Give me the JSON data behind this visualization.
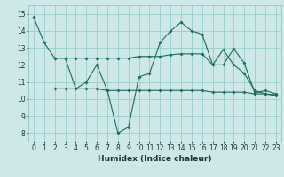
{
  "bg_color": "#cce8e8",
  "grid_color": "#99cccc",
  "line_color": "#1a6b5a",
  "xlabel": "Humidex (Indice chaleur)",
  "xlim": [
    -0.5,
    23.5
  ],
  "ylim": [
    7.5,
    15.5
  ],
  "yticks": [
    8,
    9,
    10,
    11,
    12,
    13,
    14,
    15
  ],
  "xticks": [
    0,
    1,
    2,
    3,
    4,
    5,
    6,
    7,
    8,
    9,
    10,
    11,
    12,
    13,
    14,
    15,
    16,
    17,
    18,
    19,
    20,
    21,
    22,
    23
  ],
  "line1_x": [
    0,
    1,
    2,
    3,
    4,
    5,
    6,
    7,
    8,
    9,
    10,
    11,
    12,
    13,
    14,
    15,
    16,
    17,
    18,
    19,
    20,
    21,
    22,
    23
  ],
  "line1_y": [
    14.8,
    13.3,
    12.4,
    12.4,
    10.6,
    11.0,
    12.0,
    10.5,
    8.0,
    8.35,
    11.3,
    11.5,
    13.3,
    14.0,
    14.5,
    14.0,
    13.8,
    12.0,
    12.9,
    12.0,
    11.5,
    10.5,
    10.3,
    10.25
  ],
  "line2_x": [
    2,
    3,
    4,
    5,
    6,
    7,
    8,
    9,
    10,
    11,
    12,
    13,
    14,
    15,
    16,
    17,
    18,
    19,
    20,
    21,
    22,
    23
  ],
  "line2_y": [
    10.6,
    10.6,
    10.6,
    10.6,
    10.6,
    10.5,
    10.5,
    10.5,
    10.5,
    10.5,
    10.5,
    10.5,
    10.5,
    10.5,
    10.5,
    10.4,
    10.4,
    10.4,
    10.4,
    10.3,
    10.3,
    10.2
  ],
  "line3_x": [
    2,
    3,
    4,
    5,
    6,
    7,
    8,
    9,
    10,
    11,
    12,
    13,
    14,
    15,
    16,
    17,
    18,
    19,
    20,
    21,
    22,
    23
  ],
  "line3_y": [
    12.4,
    12.4,
    12.4,
    12.4,
    12.4,
    12.4,
    12.4,
    12.4,
    12.5,
    12.5,
    12.5,
    12.6,
    12.65,
    12.65,
    12.65,
    12.0,
    12.0,
    12.95,
    12.1,
    10.35,
    10.5,
    10.3
  ]
}
